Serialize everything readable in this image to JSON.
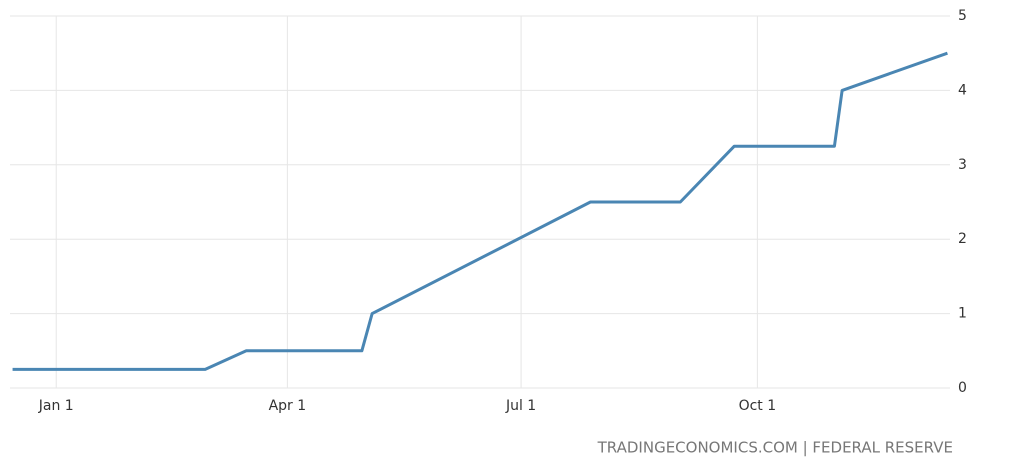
{
  "chart_data": {
    "type": "line",
    "x": [
      -17,
      58,
      74,
      119,
      123,
      208,
      243,
      264,
      303,
      306,
      347
    ],
    "series": [
      {
        "color": "#4a86b3",
        "values": [
          0.25,
          0.25,
          0.5,
          0.5,
          1.0,
          2.5,
          2.5,
          3.25,
          3.25,
          4.0,
          4.5
        ]
      }
    ],
    "xlim": [
      -18,
      348
    ],
    "xticks": [
      {
        "value": 0,
        "label": "Jan 1"
      },
      {
        "value": 90,
        "label": "Apr 1"
      },
      {
        "value": 181,
        "label": "Jul 1"
      },
      {
        "value": 273,
        "label": "Oct 1"
      }
    ],
    "ylim": [
      0,
      5
    ],
    "yticks": [
      0,
      1,
      2,
      3,
      4,
      5
    ],
    "grid": true,
    "source": "TRADINGECONOMICS.COM | FEDERAL RESERVE"
  }
}
